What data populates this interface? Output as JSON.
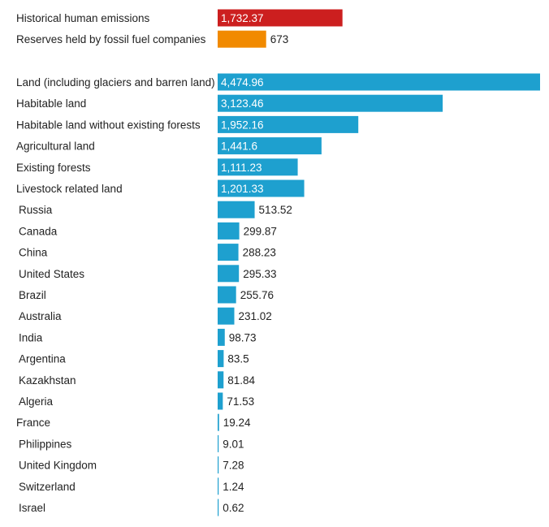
{
  "chart_data": {
    "type": "bar",
    "orientation": "horizontal",
    "title": "",
    "xlabel": "",
    "ylabel": "",
    "xlim": [
      0,
      4474.96
    ],
    "grid": false,
    "legend": "none",
    "colors": {
      "emissions": "#cc1f1f",
      "reserves": "#f18a00",
      "land": "#1ea0cf"
    },
    "groups": [
      {
        "bars": [
          {
            "category": "Historical human emissions",
            "value": 1732.37,
            "value_label": "1,732.37",
            "color_key": "emissions",
            "indent": false
          },
          {
            "category": "Reserves held by fossil fuel companies",
            "value": 673,
            "value_label": "673",
            "color_key": "reserves",
            "indent": false
          }
        ]
      },
      {
        "bars": [
          {
            "category": "Land (including glaciers and barren land)",
            "value": 4474.96,
            "value_label": "4,474.96",
            "color_key": "land",
            "indent": false
          },
          {
            "category": "Habitable land",
            "value": 3123.46,
            "value_label": "3,123.46",
            "color_key": "land",
            "indent": false
          },
          {
            "category": "Habitable land without existing forests",
            "value": 1952.16,
            "value_label": "1,952.16",
            "color_key": "land",
            "indent": false
          },
          {
            "category": "Agricultural land",
            "value": 1441.6,
            "value_label": "1,441.6",
            "color_key": "land",
            "indent": false
          },
          {
            "category": "Existing forests",
            "value": 1111.23,
            "value_label": "1,111.23",
            "color_key": "land",
            "indent": false
          },
          {
            "category": "Livestock related land",
            "value": 1201.33,
            "value_label": "1,201.33",
            "color_key": "land",
            "indent": false
          },
          {
            "category": "Russia",
            "value": 513.52,
            "value_label": "513.52",
            "color_key": "land",
            "indent": true
          },
          {
            "category": "Canada",
            "value": 299.87,
            "value_label": "299.87",
            "color_key": "land",
            "indent": true
          },
          {
            "category": "China",
            "value": 288.23,
            "value_label": "288.23",
            "color_key": "land",
            "indent": true
          },
          {
            "category": "United States",
            "value": 295.33,
            "value_label": "295.33",
            "color_key": "land",
            "indent": true
          },
          {
            "category": "Brazil",
            "value": 255.76,
            "value_label": "255.76",
            "color_key": "land",
            "indent": true
          },
          {
            "category": "Australia",
            "value": 231.02,
            "value_label": "231.02",
            "color_key": "land",
            "indent": true
          },
          {
            "category": "India",
            "value": 98.73,
            "value_label": "98.73",
            "color_key": "land",
            "indent": true
          },
          {
            "category": "Argentina",
            "value": 83.5,
            "value_label": "83.5",
            "color_key": "land",
            "indent": true
          },
          {
            "category": "Kazakhstan",
            "value": 81.84,
            "value_label": "81.84",
            "color_key": "land",
            "indent": true
          },
          {
            "category": "Algeria",
            "value": 71.53,
            "value_label": "71.53",
            "color_key": "land",
            "indent": true
          },
          {
            "category": "France",
            "value": 19.24,
            "value_label": "19.24",
            "color_key": "land",
            "indent": false
          },
          {
            "category": "Philippines",
            "value": 9.01,
            "value_label": "9.01",
            "color_key": "land",
            "indent": true
          },
          {
            "category": "United Kingdom",
            "value": 7.28,
            "value_label": "7.28",
            "color_key": "land",
            "indent": true
          },
          {
            "category": "Switzerland",
            "value": 1.24,
            "value_label": "1.24",
            "color_key": "land",
            "indent": true
          },
          {
            "category": "Israel",
            "value": 0.62,
            "value_label": "0.62",
            "color_key": "land",
            "indent": true
          }
        ]
      }
    ]
  }
}
